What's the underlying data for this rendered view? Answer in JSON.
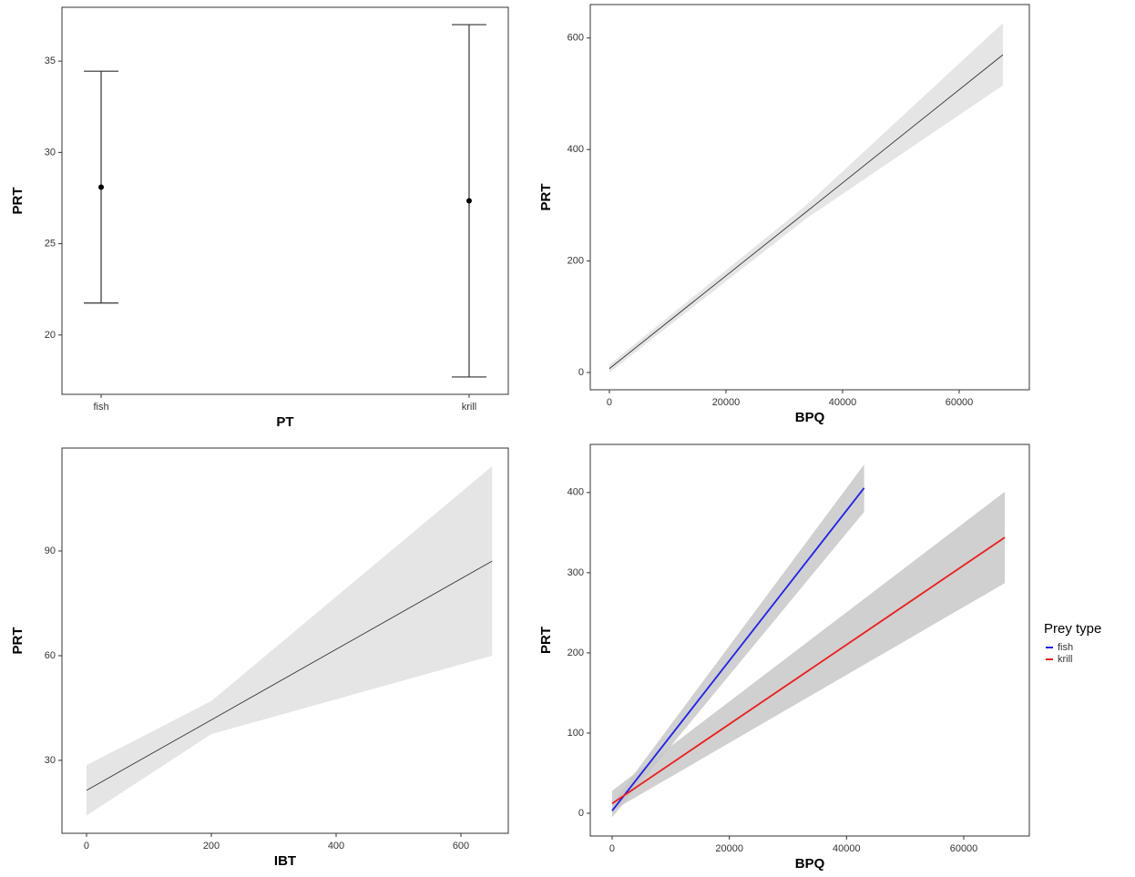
{
  "chart_data": [
    {
      "type": "errorbar",
      "x_label": "PT",
      "y_label": "PRT",
      "categories": [
        "fish",
        "krill"
      ],
      "values": [
        28.1,
        27.35
      ],
      "errors": [
        6.35,
        9.65
      ],
      "color": "#000000",
      "ylim": [
        16.75,
        37.95
      ],
      "yticks": [
        20,
        25,
        30,
        35
      ]
    },
    {
      "type": "line",
      "x_label": "BPQ",
      "y_label": "PRT",
      "series": [
        {
          "color": "#333333",
          "band_color": "#e0e0e0",
          "x": [
            0,
            33750,
            67500
          ],
          "values": [
            7,
            288,
            570
          ],
          "lower": [
            0,
            276,
            515
          ],
          "upper": [
            14,
            300,
            627
          ]
        }
      ],
      "xlim": [
        -3281,
        72031
      ],
      "xticks": [
        0,
        20000,
        40000,
        60000
      ],
      "ylim": [
        -31,
        660
      ],
      "yticks": [
        0,
        200,
        400,
        600
      ]
    },
    {
      "type": "line",
      "x_label": "IBT",
      "y_label": "PRT",
      "series": [
        {
          "color": "#333333",
          "band_color": "#e0e0e0",
          "x": [
            0,
            200,
            650
          ],
          "values": [
            21.4,
            41.6,
            87.1
          ],
          "lower": [
            14.2,
            37.5,
            60
          ],
          "upper": [
            28.6,
            47,
            114.3
          ]
        }
      ],
      "xlim": [
        -39.4,
        675.9
      ],
      "xticks": [
        0,
        200,
        400,
        600
      ],
      "ylim": [
        9.1,
        119.5
      ],
      "yticks": [
        30,
        60,
        90
      ]
    },
    {
      "type": "line",
      "x_label": "BPQ",
      "y_label": "PRT",
      "legend_title": "Prey type",
      "legend": "right",
      "series": [
        {
          "name": "fish",
          "color": "#2020ee",
          "band_color": "#c8c8c8",
          "x": [
            0,
            43000
          ],
          "values": [
            3,
            405.7
          ],
          "lower": [
            -5,
            376
          ],
          "upper": [
            12,
            435
          ]
        },
        {
          "name": "krill",
          "color": "#ee1c1c",
          "band_color": "#c8c8c8",
          "x": [
            0,
            67000
          ],
          "values": [
            12,
            344
          ],
          "lower": [
            3,
            287
          ],
          "upper": [
            28,
            401
          ]
        }
      ],
      "xlim": [
        -3730,
        71189
      ],
      "xticks": [
        0,
        20000,
        40000,
        60000
      ],
      "ylim": [
        -28.4,
        460
      ],
      "yticks": [
        0,
        100,
        200,
        300,
        400
      ]
    }
  ]
}
